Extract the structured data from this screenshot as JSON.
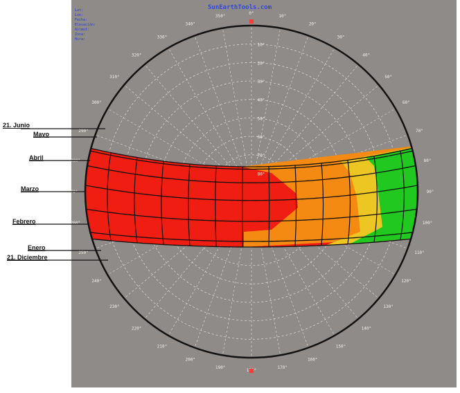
{
  "header": {
    "site_title": "SunEarthTools.com",
    "info_lines": [
      "Lat:",
      "Lon:",
      "Fecha:",
      "Elevación:",
      "Azimut:",
      "Zona:",
      "Hora:"
    ]
  },
  "legend": [
    "",
    "",
    ""
  ],
  "month_labels": [
    "21. Junio",
    "Mayo",
    "Abril",
    "Marzo",
    "Febrero",
    "Enero",
    "21. Diciembre"
  ],
  "azimuth_labels": [
    "0°",
    "10°",
    "20°",
    "30°",
    "40°",
    "50°",
    "60°",
    "70°",
    "80°",
    "90°",
    "100°",
    "110°",
    "120°",
    "130°",
    "140°",
    "150°",
    "160°",
    "170°",
    "180°",
    "190°",
    "200°",
    "210°",
    "220°",
    "230°",
    "240°",
    "250°",
    "260°",
    "270°",
    "280°",
    "290°",
    "300°",
    "310°",
    "320°",
    "330°",
    "340°",
    "350°"
  ],
  "elevation_labels": [
    "80°",
    "70°",
    "60°",
    "50°",
    "40°",
    "30°",
    "20°",
    "10°"
  ],
  "right_time_labels": [
    "",
    "",
    "",
    "",
    "",
    "",
    ""
  ],
  "colors": {
    "panel": "#8e8b88",
    "red": "#f01e12",
    "orange": "#f58a12",
    "yellow": "#ecc724",
    "green": "#20c820",
    "horizon": "#111111",
    "grid": "#e8e8e8",
    "compass_marker": "#ff3a3a",
    "info_text": "#2a3cd6"
  }
}
